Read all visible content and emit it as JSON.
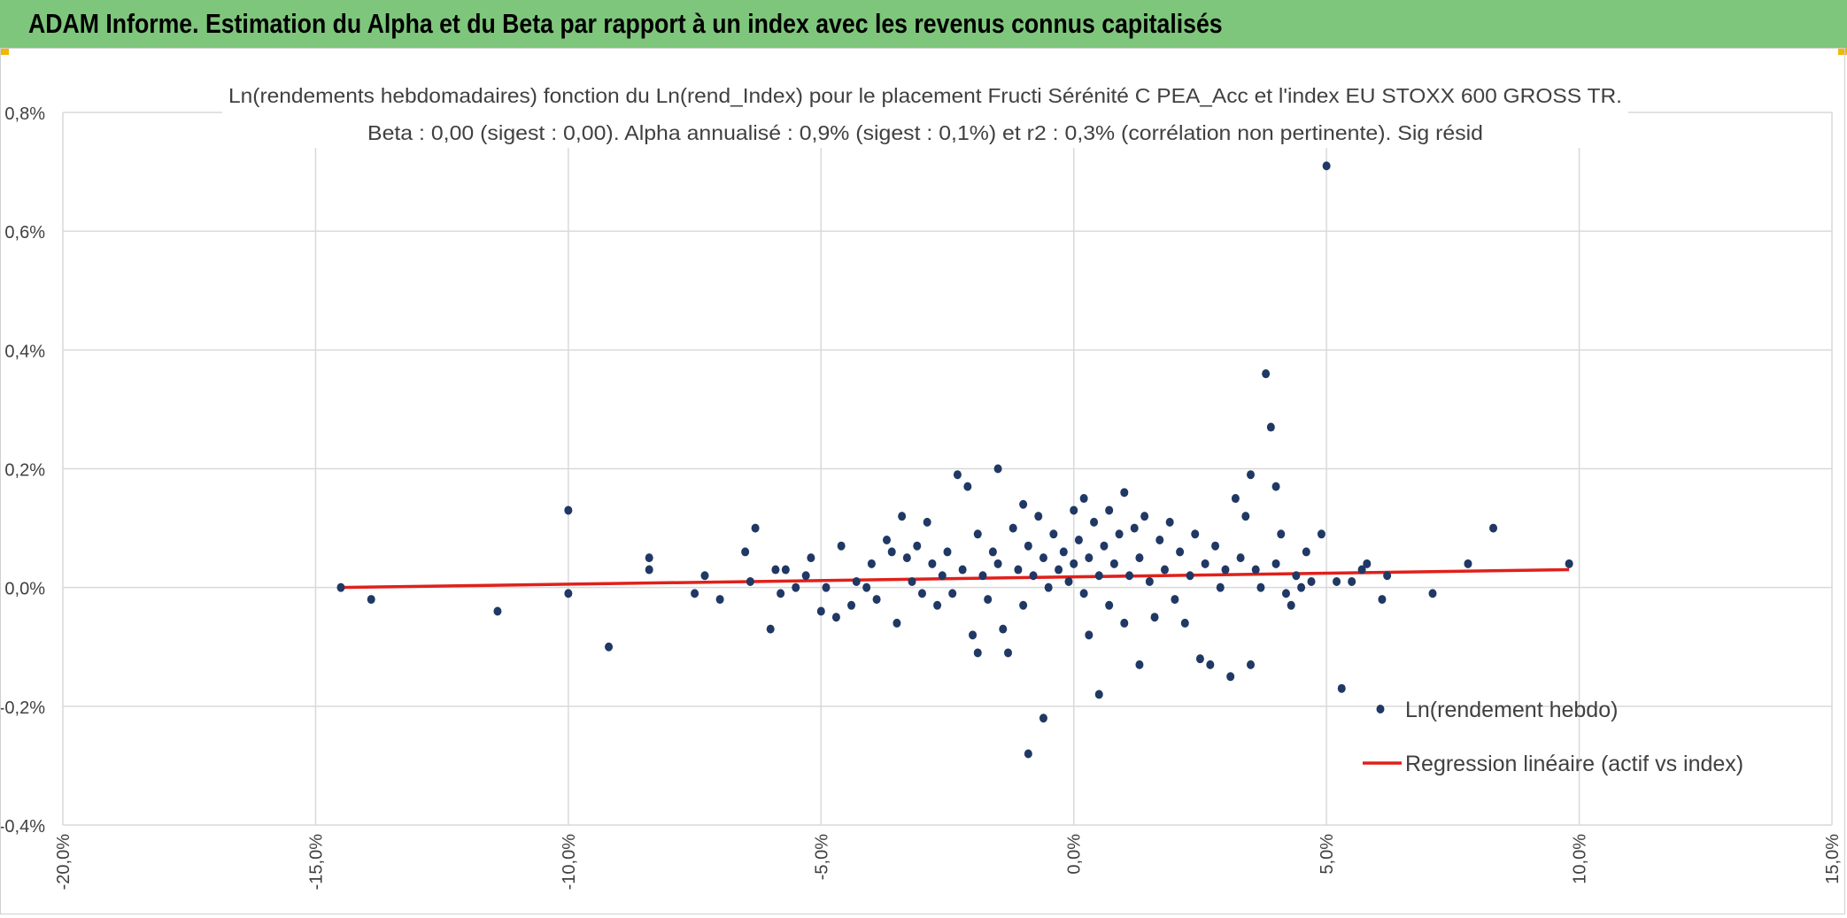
{
  "header": {
    "title": "ADAM Informe. Estimation du Alpha et du Beta par rapport à un index avec les revenus connus capitalisés"
  },
  "colors": {
    "banner": "#7ec67b",
    "points": "#203864",
    "regression": "#e0201b",
    "grid": "#d9d9d9"
  },
  "chart_data": {
    "type": "scatter",
    "title": "Ln(rendements hebdomadaires) fonction du Ln(rend_Index) pour le placement Fructi Sérénité C PEA_Acc et l'index EU STOXX 600 GROSS TR.",
    "subtitle": "Beta : 0,00 (sigest : 0,00). Alpha annualisé : 0,9% (sigest : 0,1%) et r2 : 0,3% (corrélation non pertinente). Sig résid",
    "xlim": [
      -0.2,
      0.15
    ],
    "ylim": [
      -0.004,
      0.008
    ],
    "x_ticks": [
      -0.2,
      -0.15,
      -0.1,
      -0.05,
      0.0,
      0.05,
      0.1,
      0.15
    ],
    "x_tick_labels": [
      "-20,0%",
      "-15,0%",
      "-10,0%",
      "-5,0%",
      "0,0%",
      "5,0%",
      "10,0%",
      "15,0%"
    ],
    "y_ticks": [
      -0.004,
      -0.002,
      0.0,
      0.002,
      0.004,
      0.006,
      0.008
    ],
    "y_tick_labels": [
      "-0,4%",
      "-0,2%",
      "0,0%",
      "0,2%",
      "0,4%",
      "0,6%",
      "0,8%"
    ],
    "grid": true,
    "legend_position": "bottom-right",
    "series": [
      {
        "name": "Ln(rendement hebdo)",
        "kind": "scatter",
        "color": "#203864",
        "points": [
          [
            -0.145,
            0.0
          ],
          [
            -0.139,
            -0.0002
          ],
          [
            -0.114,
            -0.0004
          ],
          [
            -0.1,
            0.0013
          ],
          [
            -0.1,
            -0.0001
          ],
          [
            -0.092,
            -0.001
          ],
          [
            -0.084,
            0.0005
          ],
          [
            -0.084,
            0.0003
          ],
          [
            -0.075,
            -0.0001
          ],
          [
            -0.073,
            0.0002
          ],
          [
            -0.07,
            -0.0002
          ],
          [
            -0.065,
            0.0006
          ],
          [
            -0.063,
            0.001
          ],
          [
            -0.064,
            0.0001
          ],
          [
            -0.06,
            -0.0007
          ],
          [
            -0.059,
            0.0003
          ],
          [
            -0.058,
            -0.0001
          ],
          [
            -0.057,
            0.0003
          ],
          [
            -0.055,
            0.0
          ],
          [
            -0.053,
            0.0002
          ],
          [
            -0.052,
            0.0005
          ],
          [
            -0.05,
            -0.0004
          ],
          [
            -0.049,
            0.0
          ],
          [
            -0.047,
            -0.0005
          ],
          [
            -0.046,
            0.0007
          ],
          [
            -0.044,
            -0.0003
          ],
          [
            -0.043,
            0.0001
          ],
          [
            -0.041,
            0.0
          ],
          [
            -0.04,
            0.0004
          ],
          [
            -0.039,
            -0.0002
          ],
          [
            -0.037,
            0.0008
          ],
          [
            -0.036,
            0.0006
          ],
          [
            -0.035,
            -0.0006
          ],
          [
            -0.034,
            0.0012
          ],
          [
            -0.033,
            0.0005
          ],
          [
            -0.032,
            0.0001
          ],
          [
            -0.031,
            0.0007
          ],
          [
            -0.03,
            -0.0001
          ],
          [
            -0.029,
            0.0011
          ],
          [
            -0.028,
            0.0004
          ],
          [
            -0.027,
            -0.0003
          ],
          [
            -0.026,
            0.0002
          ],
          [
            -0.025,
            0.0006
          ],
          [
            -0.024,
            -0.0001
          ],
          [
            -0.023,
            0.0019
          ],
          [
            -0.022,
            0.0003
          ],
          [
            -0.021,
            0.0017
          ],
          [
            -0.02,
            -0.0008
          ],
          [
            -0.019,
            -0.0011
          ],
          [
            -0.019,
            0.0009
          ],
          [
            -0.018,
            0.0002
          ],
          [
            -0.017,
            -0.0002
          ],
          [
            -0.016,
            0.0006
          ],
          [
            -0.015,
            0.002
          ],
          [
            -0.015,
            0.0004
          ],
          [
            -0.014,
            -0.0007
          ],
          [
            -0.013,
            -0.0011
          ],
          [
            -0.012,
            0.001
          ],
          [
            -0.011,
            0.0003
          ],
          [
            -0.01,
            0.0014
          ],
          [
            -0.01,
            -0.0003
          ],
          [
            -0.009,
            0.0007
          ],
          [
            -0.009,
            -0.0028
          ],
          [
            -0.008,
            0.0002
          ],
          [
            -0.007,
            0.0012
          ],
          [
            -0.006,
            -0.0022
          ],
          [
            -0.006,
            0.0005
          ],
          [
            -0.005,
            0.0
          ],
          [
            -0.004,
            0.0009
          ],
          [
            -0.003,
            0.0003
          ],
          [
            -0.002,
            0.0006
          ],
          [
            -0.001,
            0.0001
          ],
          [
            0.0,
            0.0013
          ],
          [
            0.0,
            0.0004
          ],
          [
            0.001,
            0.0008
          ],
          [
            0.002,
            -0.0001
          ],
          [
            0.002,
            0.0015
          ],
          [
            0.003,
            -0.0008
          ],
          [
            0.003,
            0.0005
          ],
          [
            0.004,
            0.0011
          ],
          [
            0.005,
            -0.0018
          ],
          [
            0.005,
            0.0002
          ],
          [
            0.006,
            0.0007
          ],
          [
            0.007,
            0.0013
          ],
          [
            0.007,
            -0.0003
          ],
          [
            0.008,
            0.0004
          ],
          [
            0.009,
            0.0009
          ],
          [
            0.01,
            0.0016
          ],
          [
            0.01,
            -0.0006
          ],
          [
            0.011,
            0.0002
          ],
          [
            0.012,
            0.001
          ],
          [
            0.013,
            -0.0013
          ],
          [
            0.013,
            0.0005
          ],
          [
            0.014,
            0.0012
          ],
          [
            0.015,
            0.0001
          ],
          [
            0.016,
            -0.0005
          ],
          [
            0.017,
            0.0008
          ],
          [
            0.018,
            0.0003
          ],
          [
            0.019,
            0.0011
          ],
          [
            0.02,
            -0.0002
          ],
          [
            0.021,
            0.0006
          ],
          [
            0.022,
            -0.0006
          ],
          [
            0.023,
            0.0002
          ],
          [
            0.024,
            0.0009
          ],
          [
            0.025,
            -0.0012
          ],
          [
            0.026,
            0.0004
          ],
          [
            0.027,
            -0.0013
          ],
          [
            0.028,
            0.0007
          ],
          [
            0.029,
            0.0
          ],
          [
            0.03,
            0.0003
          ],
          [
            0.031,
            -0.0015
          ],
          [
            0.032,
            0.0015
          ],
          [
            0.033,
            0.0005
          ],
          [
            0.034,
            0.0012
          ],
          [
            0.035,
            0.0019
          ],
          [
            0.035,
            -0.0013
          ],
          [
            0.036,
            0.0003
          ],
          [
            0.037,
            0.0
          ],
          [
            0.038,
            0.0036
          ],
          [
            0.039,
            0.0027
          ],
          [
            0.04,
            0.0017
          ],
          [
            0.04,
            0.0004
          ],
          [
            0.041,
            0.0009
          ],
          [
            0.042,
            -0.0001
          ],
          [
            0.043,
            -0.0003
          ],
          [
            0.044,
            0.0002
          ],
          [
            0.045,
            0.0
          ],
          [
            0.046,
            0.0006
          ],
          [
            0.047,
            0.0001
          ],
          [
            0.049,
            0.0009
          ],
          [
            0.05,
            0.0071
          ],
          [
            0.052,
            0.0001
          ],
          [
            0.053,
            -0.0017
          ],
          [
            0.055,
            0.0001
          ],
          [
            0.057,
            0.0003
          ],
          [
            0.058,
            0.0004
          ],
          [
            0.061,
            -0.0002
          ],
          [
            0.062,
            0.0002
          ],
          [
            0.071,
            -0.0001
          ],
          [
            0.078,
            0.0004
          ],
          [
            0.083,
            0.001
          ],
          [
            0.098,
            0.0004
          ]
        ]
      },
      {
        "name": "Regression linéaire (actif vs index)",
        "kind": "line",
        "color": "#e0201b",
        "points": [
          [
            -0.145,
            0.0
          ],
          [
            0.098,
            0.0003
          ]
        ]
      }
    ]
  }
}
